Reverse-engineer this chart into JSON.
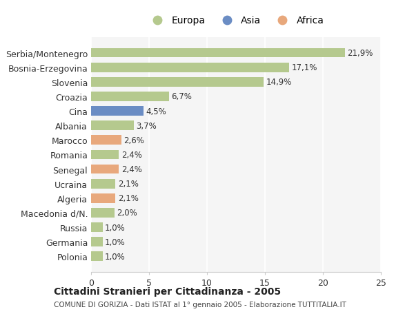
{
  "categories": [
    "Serbia/Montenegro",
    "Bosnia-Erzegovina",
    "Slovenia",
    "Croazia",
    "Cina",
    "Albania",
    "Marocco",
    "Romania",
    "Senegal",
    "Ucraina",
    "Algeria",
    "Macedonia d/N.",
    "Russia",
    "Germania",
    "Polonia"
  ],
  "values": [
    21.9,
    17.1,
    14.9,
    6.7,
    4.5,
    3.7,
    2.6,
    2.4,
    2.4,
    2.1,
    2.1,
    2.0,
    1.0,
    1.0,
    1.0
  ],
  "labels": [
    "21,9%",
    "17,1%",
    "14,9%",
    "6,7%",
    "4,5%",
    "3,7%",
    "2,6%",
    "2,4%",
    "2,4%",
    "2,1%",
    "2,1%",
    "2,0%",
    "1,0%",
    "1,0%",
    "1,0%"
  ],
  "colors": [
    "#b5c98e",
    "#b5c98e",
    "#b5c98e",
    "#b5c98e",
    "#6b8dc4",
    "#b5c98e",
    "#e8a87c",
    "#b5c98e",
    "#e8a87c",
    "#b5c98e",
    "#e8a87c",
    "#b5c98e",
    "#b5c98e",
    "#b5c98e",
    "#b5c98e"
  ],
  "legend_names": [
    "Europa",
    "Asia",
    "Africa"
  ],
  "legend_colors": [
    "#b5c98e",
    "#6b8dc4",
    "#e8a87c"
  ],
  "xlim": [
    0,
    25
  ],
  "xticks": [
    0,
    5,
    10,
    15,
    20,
    25
  ],
  "title": "Cittadini Stranieri per Cittadinanza - 2005",
  "subtitle": "COMUNE DI GORIZIA - Dati ISTAT al 1° gennaio 2005 - Elaborazione TUTTITALIA.IT",
  "background_color": "#ffffff",
  "bar_background": "#f5f5f5"
}
